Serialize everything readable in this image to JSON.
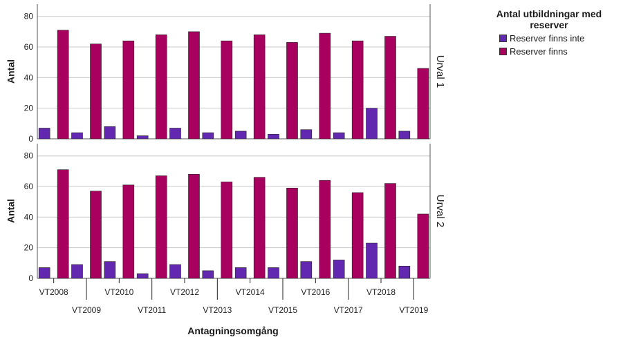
{
  "chart_data": {
    "type": "bar",
    "xlabel": "Antagningsomgång",
    "ylabel": "Antal",
    "ylim": [
      0,
      88
    ],
    "yticks": [
      0,
      20,
      40,
      60,
      80
    ],
    "categories": [
      "VT2008",
      "VT2009",
      "VT2010",
      "VT2011",
      "VT2012",
      "VT2013",
      "VT2014",
      "VT2015",
      "VT2016",
      "VT2017",
      "VT2018",
      "VT2019"
    ],
    "legend": {
      "title": "Antal utbildningar med reserver",
      "placement": "top-right",
      "entries": [
        {
          "label": "Reserver finns inte",
          "color": "#6328b0"
        },
        {
          "label": "Reserver finns",
          "color": "#a8005f"
        }
      ]
    },
    "panels": [
      {
        "label": "Urval 1",
        "series": [
          {
            "name": "Reserver finns inte",
            "color": "#6328b0",
            "values": [
              7,
              4,
              8,
              2,
              7,
              4,
              5,
              3,
              6,
              4,
              20,
              5
            ]
          },
          {
            "name": "Reserver finns",
            "color": "#a8005f",
            "values": [
              71,
              62,
              64,
              68,
              70,
              64,
              68,
              63,
              69,
              64,
              67,
              46
            ]
          }
        ]
      },
      {
        "label": "Urval 2",
        "series": [
          {
            "name": "Reserver finns inte",
            "color": "#6328b0",
            "values": [
              7,
              9,
              11,
              3,
              9,
              5,
              7,
              7,
              11,
              12,
              23,
              8
            ]
          },
          {
            "name": "Reserver finns",
            "color": "#a8005f",
            "values": [
              71,
              57,
              61,
              67,
              68,
              63,
              66,
              59,
              64,
              56,
              62,
              42
            ]
          }
        ]
      }
    ]
  }
}
